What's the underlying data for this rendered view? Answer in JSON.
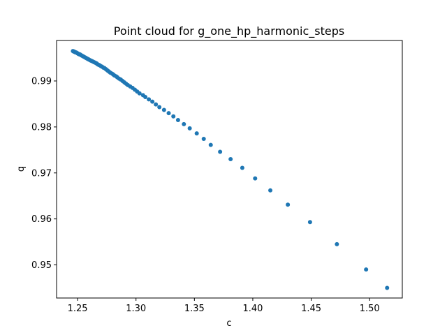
{
  "chart_data": {
    "type": "scatter",
    "title": "Point cloud for g_one_hp_harmonic_steps",
    "xlabel": "c",
    "ylabel": "q",
    "xlim": [
      1.232,
      1.528
    ],
    "ylim": [
      0.9428,
      0.9988
    ],
    "xticks": [
      1.25,
      1.3,
      1.35,
      1.4,
      1.45,
      1.5
    ],
    "xtick_labels": [
      "1.25",
      "1.30",
      "1.35",
      "1.40",
      "1.45",
      "1.50"
    ],
    "yticks": [
      0.95,
      0.96,
      0.97,
      0.98,
      0.99
    ],
    "ytick_labels": [
      "0.95",
      "0.96",
      "0.97",
      "0.98",
      "0.99"
    ],
    "grid": false,
    "legend": "none",
    "marker_color": "#1f77b4",
    "x": [
      1.515,
      1.497,
      1.472,
      1.449,
      1.43,
      1.415,
      1.402,
      1.391,
      1.381,
      1.372,
      1.364,
      1.358,
      1.352,
      1.346,
      1.341,
      1.336,
      1.332,
      1.328,
      1.324,
      1.32,
      1.317,
      1.314,
      1.311,
      1.308,
      1.306,
      1.303,
      1.301,
      1.299,
      1.297,
      1.295,
      1.293,
      1.2915,
      1.29,
      1.2885,
      1.287,
      1.2855,
      1.284,
      1.283,
      1.2815,
      1.2805,
      1.2795,
      1.278,
      1.277,
      1.276,
      1.275,
      1.274,
      1.273,
      1.272,
      1.271,
      1.27,
      1.269,
      1.268,
      1.2672,
      1.2664,
      1.2656,
      1.2648,
      1.264,
      1.2632,
      1.2624,
      1.2616,
      1.2608,
      1.26,
      1.2593,
      1.2586,
      1.2579,
      1.2572,
      1.2565,
      1.2558,
      1.2551,
      1.2544,
      1.2537,
      1.253,
      1.2524,
      1.2518,
      1.2512,
      1.2506,
      1.25,
      1.2494,
      1.2488,
      1.2482,
      1.2476,
      1.247,
      1.2465,
      1.246
    ],
    "y": [
      0.945,
      0.949,
      0.9545,
      0.9593,
      0.9631,
      0.9662,
      0.9688,
      0.9711,
      0.973,
      0.9746,
      0.9761,
      0.9774,
      0.9786,
      0.9797,
      0.9806,
      0.9815,
      0.9823,
      0.983,
      0.9837,
      0.9843,
      0.9849,
      0.9855,
      0.986,
      0.9865,
      0.9869,
      0.9873,
      0.9877,
      0.9881,
      0.9885,
      0.9888,
      0.9891,
      0.9894,
      0.9897,
      0.99,
      0.9903,
      0.9905,
      0.9908,
      0.991,
      0.9912,
      0.9914,
      0.9916,
      0.9918,
      0.992,
      0.9922,
      0.9924,
      0.9926,
      0.9928,
      0.9929,
      0.9931,
      0.9932,
      0.9934,
      0.9935,
      0.9936,
      0.9938,
      0.9939,
      0.994,
      0.9941,
      0.9942,
      0.9943,
      0.9944,
      0.9945,
      0.9946,
      0.9947,
      0.9948,
      0.9949,
      0.995,
      0.9951,
      0.9952,
      0.9953,
      0.9954,
      0.9955,
      0.9956,
      0.9957,
      0.9958,
      0.9958,
      0.9959,
      0.996,
      0.9961,
      0.9962,
      0.9962,
      0.9963,
      0.9964,
      0.9964,
      0.9965
    ]
  }
}
